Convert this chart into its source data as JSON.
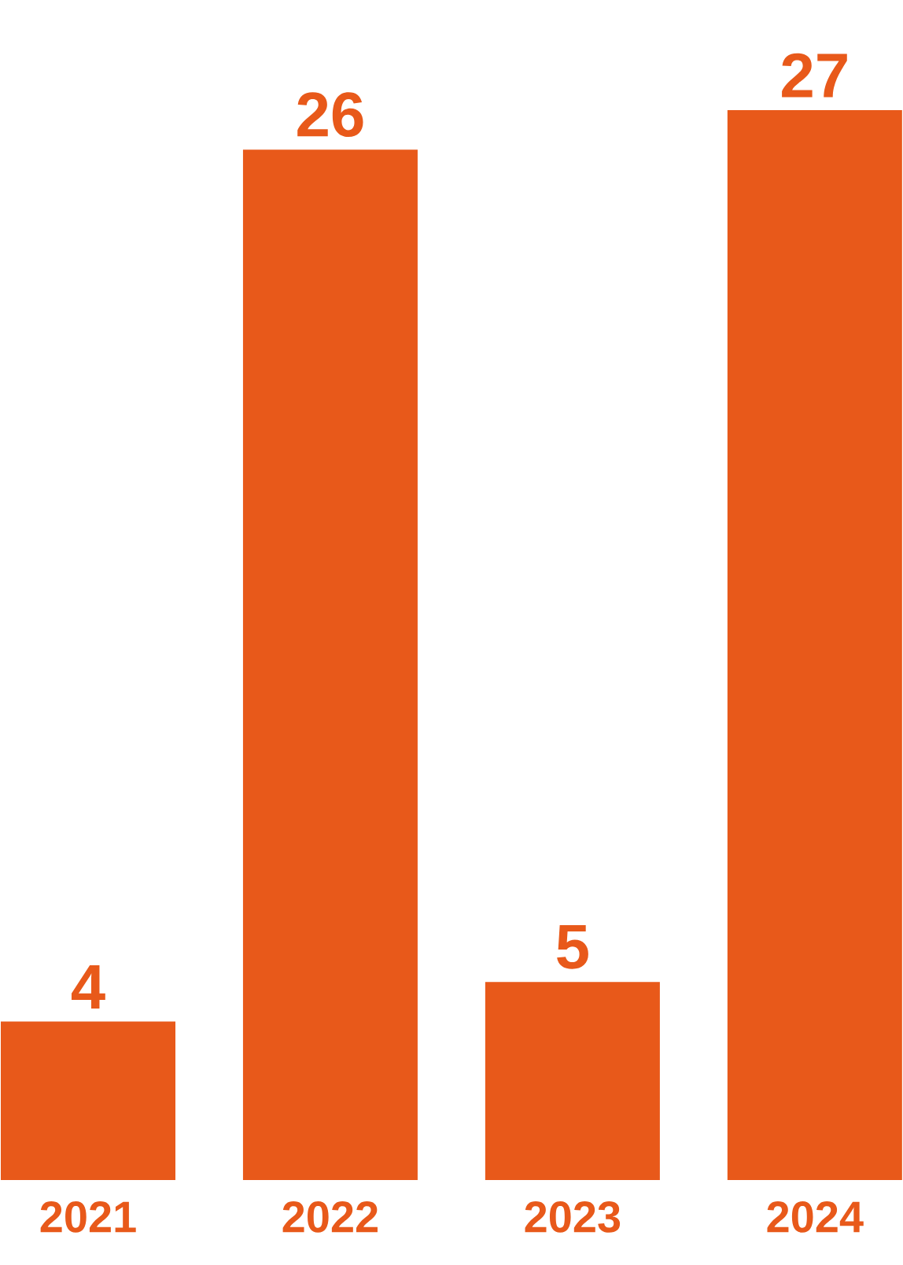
{
  "chart_data": {
    "type": "bar",
    "categories": [
      "2021",
      "2022",
      "2023",
      "2024"
    ],
    "values": [
      4,
      26,
      5,
      27
    ],
    "color": "#e8591a",
    "data_labels": true
  }
}
